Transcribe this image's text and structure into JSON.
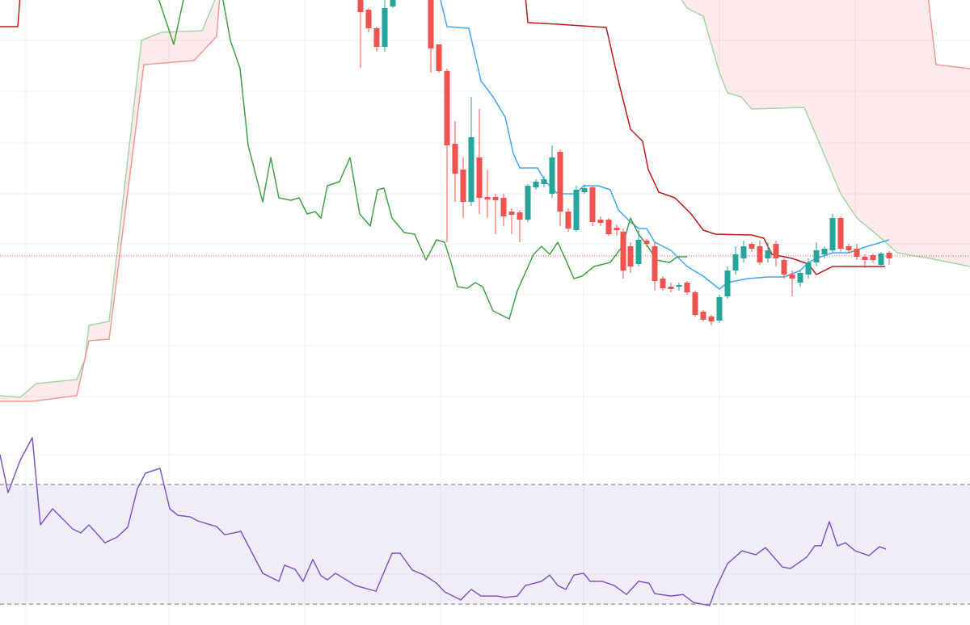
{
  "chart_data": [
    {
      "type": "candlestick",
      "xlim": [
        0,
        1200
      ],
      "xticks": [
        32,
        209,
        377,
        545,
        722,
        890,
        1058
      ],
      "ylim": [
        0,
        554
      ],
      "yticks": [
        63,
        126,
        189,
        252,
        314,
        377,
        441,
        504
      ],
      "grid": true,
      "up_color": "#26a69a",
      "down_color": "#ef5350",
      "candles": {
        "x": [
          446,
          456,
          466,
          476,
          486,
          533,
          543,
          553,
          563,
          573,
          583,
          593,
          603,
          613,
          623,
          633,
          643,
          653,
          663,
          673,
          683,
          693,
          703,
          713,
          723,
          733,
          743,
          753,
          763,
          771,
          780,
          790,
          800,
          810,
          820,
          830,
          840,
          850,
          860,
          870,
          880,
          890,
          900,
          910,
          920,
          930,
          940,
          950,
          960,
          970,
          980,
          990,
          1000,
          1010,
          1020,
          1030,
          1040,
          1050,
          1060,
          1070,
          1080,
          1090,
          1100
        ],
        "open": [
          554,
          542,
          519,
          496,
          546,
          554,
          499,
          466,
          376,
          344,
          304,
          359,
          310,
          310,
          309,
          292,
          291,
          282,
          322,
          326,
          314,
          366,
          292,
          269,
          316,
          322,
          282,
          282,
          272,
          267,
          249,
          227,
          256,
          249,
          209,
          199,
          199,
          204,
          192,
          168,
          162,
          157,
          187,
          219,
          234,
          252,
          249,
          234,
          252,
          232,
          214,
          204,
          214,
          229,
          239,
          244,
          284,
          249,
          246,
          236,
          238,
          226,
          241
        ],
        "high": [
          559,
          544,
          521,
          554,
          559,
          559,
          499,
          469,
          404,
          359,
          434,
          419,
          344,
          314,
          314,
          296,
          294,
          326,
          332,
          336,
          374,
          369,
          296,
          324,
          325,
          324,
          286,
          284,
          276,
          271,
          254,
          269,
          258,
          254,
          212,
          204,
          204,
          206,
          194,
          170,
          164,
          189,
          224,
          249,
          256,
          254,
          256,
          254,
          256,
          234,
          219,
          219,
          234,
          254,
          249,
          289,
          286,
          252,
          252,
          239,
          240,
          242,
          243
        ],
        "low": [
          470,
          514,
          490,
          490,
          544,
          464,
          464,
          254,
          304,
          284,
          299,
          289,
          284,
          264,
          274,
          264,
          254,
          279,
          319,
          322,
          309,
          274,
          267,
          267,
          314,
          274,
          274,
          262,
          262,
          209,
          216,
          224,
          248,
          194,
          194,
          192,
          194,
          189,
          162,
          156,
          151,
          154,
          184,
          214,
          229,
          242,
          226,
          229,
          224,
          209,
          187,
          199,
          209,
          224,
          234,
          242,
          242,
          240,
          232,
          222,
          229,
          224,
          226
        ],
        "close": [
          539,
          519,
          496,
          544,
          554,
          494,
          466,
          374,
          339,
          304,
          384,
          309,
          307,
          306,
          286,
          288,
          282,
          324,
          329,
          332,
          359,
          292,
          271,
          319,
          321,
          279,
          278,
          264,
          269,
          219,
          224,
          257,
          252,
          206,
          197,
          196,
          201,
          192,
          164,
          158,
          156,
          186,
          219,
          239,
          249,
          246,
          229,
          244,
          234,
          214,
          209,
          216,
          229,
          244,
          246,
          284,
          246,
          244,
          236,
          232,
          232,
          240,
          234
        ]
      },
      "series": [
        {
          "color": "#42a5f5",
          "x": [
            545,
            553,
            580,
            595,
            610,
            625,
            635,
            643,
            665,
            675,
            690,
            712,
            722,
            740,
            755,
            765,
            780,
            790,
            800,
            810,
            830,
            850,
            870,
            890,
            900,
            925,
            950,
            970,
            990,
            1000,
            1010,
            1030,
            1050,
            1070,
            1090,
            1100
          ],
          "values": [
            554,
            521,
            519,
            454,
            434,
            409,
            364,
            346,
            346,
            329,
            314,
            314,
            324,
            324,
            319,
            294,
            279,
            271,
            271,
            254,
            244,
            224,
            212,
            196,
            204,
            209,
            211,
            211,
            219,
            229,
            234,
            241,
            241,
            248,
            254,
            257
          ]
        },
        {
          "color": "#b71c1c",
          "x": [
            0,
            22,
            25,
            null,
            650,
            653,
            690,
            750,
            765,
            780,
            795,
            802,
            815,
            835,
            855,
            870,
            885,
            930,
            945,
            955,
            980,
            1000,
            1010,
            1030,
            1095
          ],
          "values": [
            521,
            521,
            559,
            null,
            559,
            526,
            524,
            520,
            454,
            394,
            379,
            344,
            316,
            309,
            289,
            269,
            264,
            263,
            259,
            239,
            234,
            227,
            214,
            224,
            224
          ]
        },
        {
          "color": "#43a047",
          "x": [
            195,
            215,
            228,
            null,
            275,
            285,
            297,
            307,
            325,
            335,
            345,
            360,
            370,
            380,
            390,
            397,
            405,
            420,
            433,
            445,
            458,
            467,
            475,
            485,
            500,
            513,
            527,
            540,
            550,
            558,
            566,
            578,
            588,
            597,
            610,
            630,
            640,
            660,
            670,
            680,
            690,
            700,
            710,
            720,
            735,
            755,
            770,
            780,
            790,
            800,
            812,
            828,
            838,
            850
          ],
          "values": [
            559,
            499,
            559,
            null,
            559,
            504,
            469,
            374,
            304,
            359,
            309,
            306,
            309,
            289,
            292,
            284,
            324,
            329,
            359,
            289,
            274,
            319,
            321,
            284,
            266,
            264,
            232,
            257,
            254,
            229,
            199,
            197,
            204,
            199,
            169,
            159,
            194,
            239,
            249,
            239,
            254,
            232,
            209,
            212,
            224,
            229,
            249,
            284,
            264,
            251,
            232,
            229,
            236,
            236
          ]
        }
      ],
      "senkou_a": {
        "color": "#a5d6a7",
        "fill": "rgba(76,175,80,0.12)",
        "x": [
          0,
          25,
          45,
          95,
          105,
          110,
          135,
          175,
          200,
          250,
          268,
          null,
          840,
          850,
          870,
          890,
          900,
          917,
          930,
          995,
          1040,
          1060,
          1090,
          1110,
          1150,
          1200
        ],
        "values": [
          64,
          62,
          79,
          84,
          109,
          151,
          156,
          504,
          514,
          516,
          559,
          null,
          559,
          544,
          534,
          464,
          439,
          434,
          419,
          421,
          314,
          284,
          259,
          241,
          234,
          224
        ]
      },
      "senkou_b": {
        "color": "#ef9a9a",
        "fill": "rgba(239,83,80,0.12)",
        "x": [
          0,
          40,
          95,
          110,
          135,
          178,
          240,
          268,
          272,
          null,
          1148,
          1158,
          1200
        ],
        "values": [
          57,
          57,
          64,
          132,
          134,
          474,
          479,
          509,
          559,
          null,
          559,
          474,
          469
        ]
      },
      "price_line": {
        "value": 237,
        "color": "#ef5350"
      }
    },
    {
      "type": "line",
      "xlim": [
        0,
        1200
      ],
      "ylim": [
        23,
        86.2
      ],
      "yticks": [
        40,
        80
      ],
      "grid": true,
      "bands": [
        30,
        70
      ],
      "band_color": "rgba(126,87,194,0.11)",
      "color": "#7e57c2",
      "x": [
        0,
        10,
        25,
        40,
        50,
        65,
        90,
        100,
        110,
        130,
        145,
        158,
        170,
        180,
        198,
        210,
        220,
        235,
        245,
        268,
        278,
        298,
        325,
        345,
        352,
        365,
        375,
        387,
        397,
        405,
        415,
        440,
        465,
        485,
        495,
        510,
        525,
        540,
        550,
        570,
        583,
        595,
        615,
        625,
        640,
        650,
        670,
        680,
        690,
        700,
        710,
        722,
        730,
        745,
        760,
        775,
        790,
        803,
        810,
        830,
        845,
        858,
        878,
        885,
        900,
        918,
        935,
        947,
        968,
        978,
        998,
        1008,
        1016,
        1026,
        1036,
        1046,
        1058,
        1075,
        1088,
        1096
      ],
      "values": [
        80,
        67.3,
        78.1,
        85.7,
        56.5,
        61.9,
        55.1,
        53.8,
        56.5,
        50.5,
        52.4,
        55.7,
        68.6,
        73.8,
        75.4,
        61.9,
        59.7,
        59.2,
        57.8,
        55.9,
        53.2,
        54.3,
        40.3,
        37.6,
        43,
        41.6,
        37.6,
        44.9,
        39.5,
        38.1,
        40.3,
        36.2,
        34.3,
        47,
        47,
        41.4,
        39.7,
        37,
        34.1,
        31.4,
        34.9,
        32.7,
        32.7,
        32.2,
        32.7,
        36.2,
        37.6,
        39.7,
        36.2,
        34.9,
        39.7,
        40.3,
        37.6,
        37.6,
        36.2,
        33.2,
        37.6,
        37,
        33.5,
        32.7,
        33.2,
        30.5,
        29.5,
        34.9,
        43.5,
        47.8,
        46.5,
        48.9,
        42.4,
        41.9,
        45.7,
        49.5,
        49.5,
        57.6,
        49.5,
        50.5,
        47.8,
        46.2,
        49.2,
        48.4
      ]
    }
  ]
}
